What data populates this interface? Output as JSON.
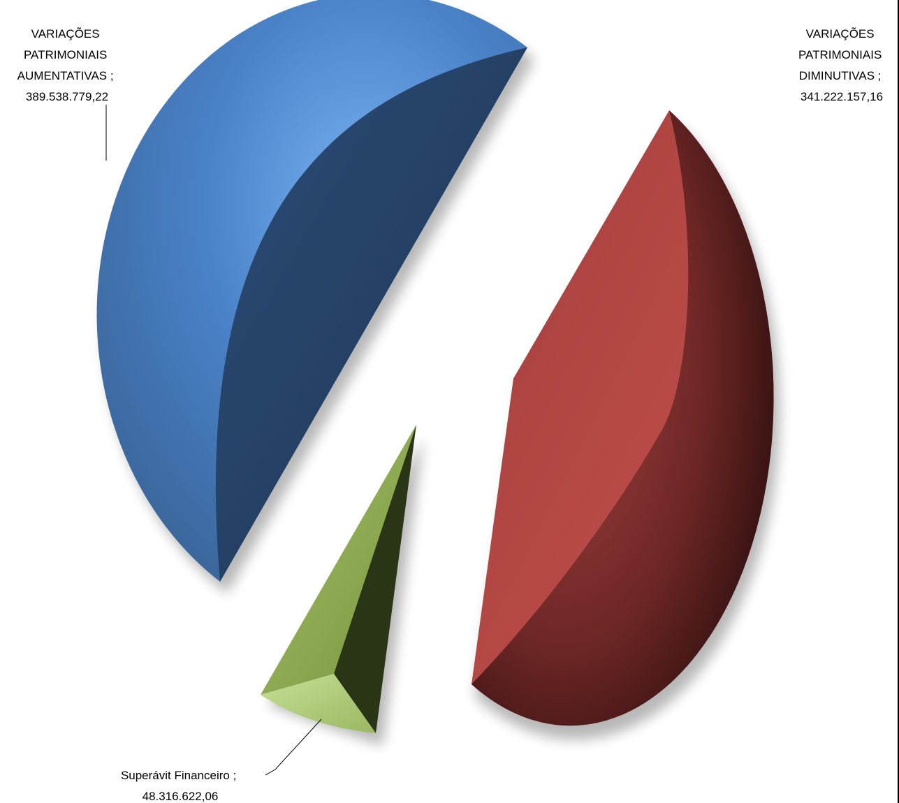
{
  "chart_data": {
    "type": "pie",
    "title": "",
    "style": "3d exploded pie",
    "slices": [
      {
        "name_lines": [
          "VARIAÇÕES",
          "PATRIMONIAIS",
          "AUMENTATIVAS ;"
        ],
        "value_label": "389.538.779,22",
        "value": 389538779.22,
        "color": "#4a7ebb"
      },
      {
        "name_lines": [
          "VARIAÇÕES",
          "PATRIMONIAIS",
          "DIMINUTIVAS ;"
        ],
        "value_label": "341.222.157,16",
        "value": 341222157.16,
        "color": "#c0504d"
      },
      {
        "name_lines": [
          "Superávit Financeiro ;"
        ],
        "value_label": "48.316.622,06",
        "value": 48316622.06,
        "color": "#9bbb59"
      }
    ]
  }
}
